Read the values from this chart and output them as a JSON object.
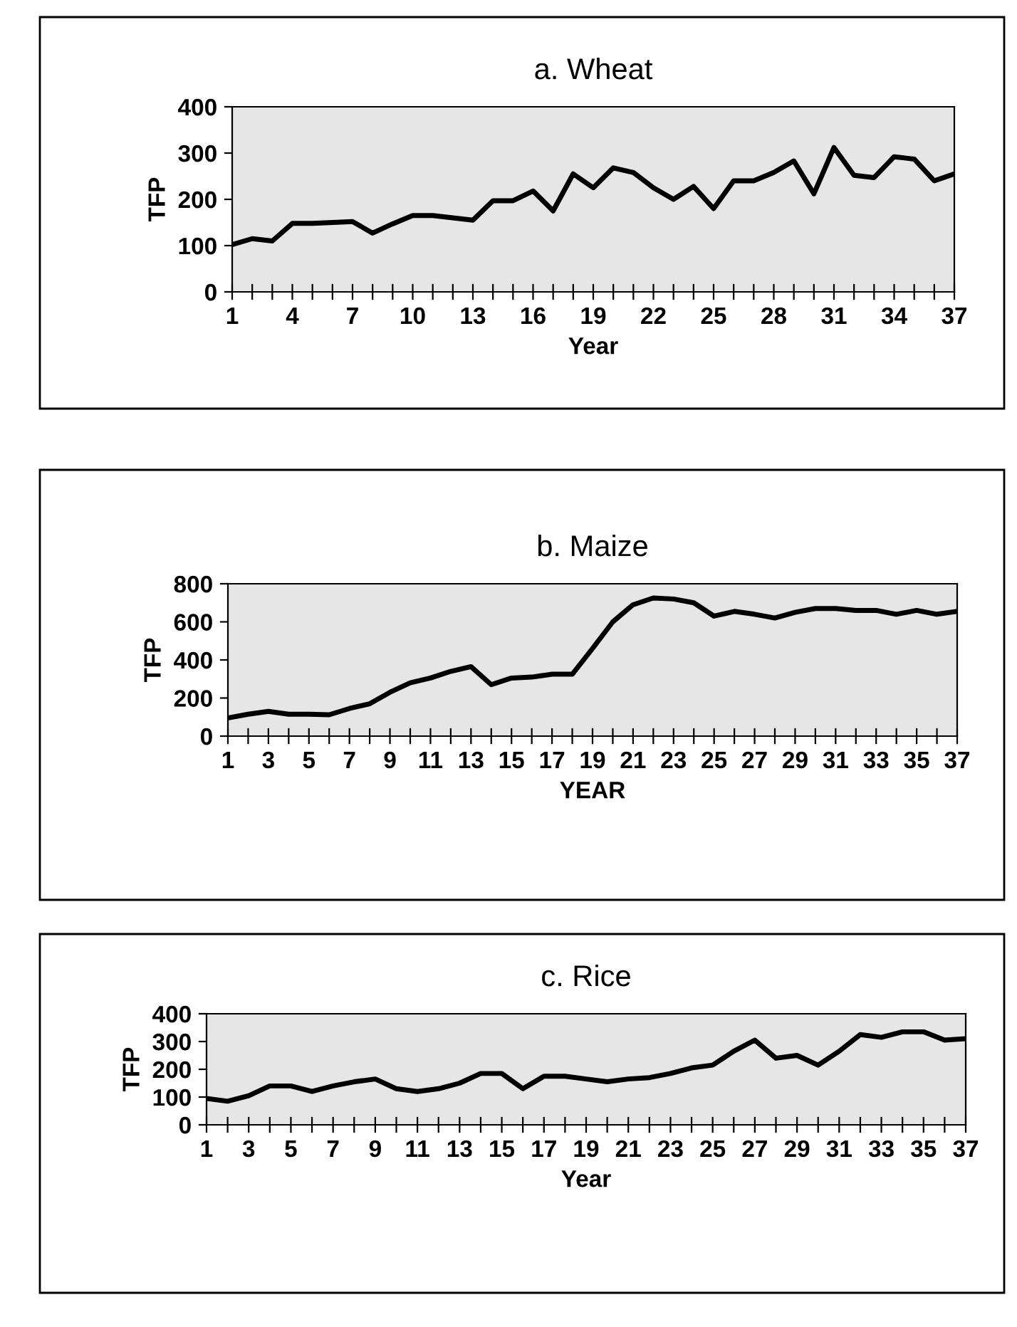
{
  "chart_data": [
    {
      "type": "line",
      "title": "a. Wheat",
      "xlabel": "Year",
      "ylabel": "TFP",
      "categories": [
        "1",
        null,
        null,
        "4",
        null,
        null,
        "7",
        null,
        null,
        "10",
        null,
        null,
        "13",
        null,
        null,
        "16",
        null,
        null,
        "19",
        null,
        null,
        "22",
        null,
        null,
        "25",
        null,
        null,
        "28",
        null,
        null,
        "31",
        null,
        null,
        "34",
        null,
        null,
        "37"
      ],
      "series": [
        {
          "color": "#000000",
          "values": [
            102,
            115,
            110,
            148,
            148,
            150,
            152,
            127,
            147,
            165,
            165,
            160,
            155,
            197,
            197,
            218,
            175,
            255,
            225,
            268,
            258,
            225,
            200,
            228,
            180,
            240,
            240,
            258,
            283,
            212,
            312,
            252,
            247,
            292,
            287,
            240,
            255
          ]
        }
      ],
      "ylim": [
        0,
        400
      ],
      "yticks": [
        0,
        100,
        200,
        300,
        400
      ],
      "grid": false,
      "legend": false,
      "marker": "none",
      "line_style": "solid"
    },
    {
      "type": "line",
      "title": "b. Maize",
      "xlabel": "YEAR",
      "ylabel": "TFP",
      "categories": [
        "1",
        null,
        "3",
        null,
        "5",
        null,
        "7",
        null,
        "9",
        null,
        "11",
        null,
        "13",
        null,
        "15",
        null,
        "17",
        null,
        "19",
        null,
        "21",
        null,
        "23",
        null,
        "25",
        null,
        "27",
        null,
        "29",
        null,
        "31",
        null,
        "33",
        null,
        "35",
        null,
        "37"
      ],
      "series": [
        {
          "color": "#000000",
          "values": [
            95,
            115,
            130,
            115,
            115,
            112,
            145,
            170,
            230,
            280,
            305,
            340,
            365,
            270,
            305,
            310,
            325,
            325,
            460,
            600,
            690,
            725,
            720,
            700,
            630,
            655,
            640,
            620,
            650,
            670,
            670,
            660,
            660,
            640,
            660,
            640,
            655
          ]
        }
      ],
      "ylim": [
        0,
        800
      ],
      "yticks": [
        0,
        200,
        400,
        600,
        800
      ],
      "grid": false,
      "legend": false,
      "marker": "none",
      "line_style": "solid"
    },
    {
      "type": "line",
      "title": "c. Rice",
      "xlabel": "Year",
      "ylabel": "TFP",
      "categories": [
        "1",
        null,
        "3",
        null,
        "5",
        null,
        "7",
        null,
        "9",
        null,
        "11",
        null,
        "13",
        null,
        "15",
        null,
        "17",
        null,
        "19",
        null,
        "21",
        null,
        "23",
        null,
        "25",
        null,
        "27",
        null,
        "29",
        null,
        "31",
        null,
        "33",
        null,
        "35",
        null,
        "37"
      ],
      "series": [
        {
          "color": "#000000",
          "values": [
            95,
            85,
            105,
            140,
            140,
            120,
            140,
            155,
            165,
            130,
            120,
            130,
            150,
            185,
            185,
            130,
            175,
            175,
            165,
            155,
            165,
            170,
            185,
            205,
            215,
            265,
            305,
            240,
            250,
            215,
            265,
            325,
            315,
            335,
            335,
            305,
            310
          ]
        }
      ],
      "ylim": [
        0,
        400
      ],
      "yticks": [
        0,
        100,
        200,
        300,
        400
      ],
      "grid": false,
      "legend": false,
      "marker": "none",
      "line_style": "solid"
    }
  ]
}
